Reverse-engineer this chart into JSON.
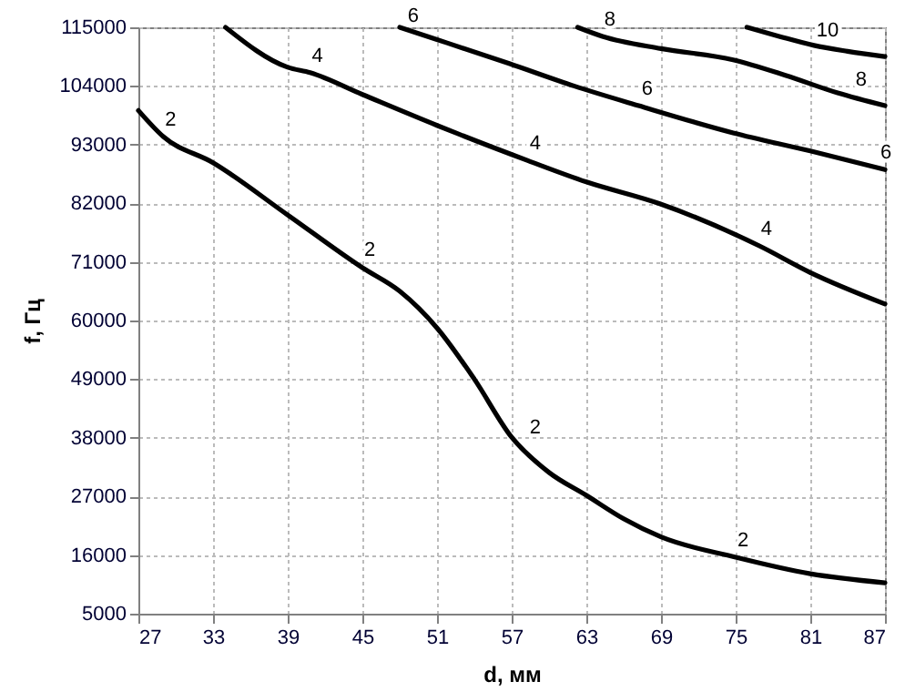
{
  "chart_data": {
    "type": "line",
    "xlabel": "d, мм",
    "ylabel": "f, Гц",
    "xlim": [
      27,
      87
    ],
    "ylim": [
      5000,
      115000
    ],
    "xticks": [
      27,
      33,
      39,
      45,
      51,
      57,
      63,
      69,
      75,
      81,
      87
    ],
    "yticks": [
      5000,
      16000,
      27000,
      38000,
      49000,
      60000,
      71000,
      82000,
      93000,
      104000,
      115000
    ],
    "grid": true,
    "marker": "none",
    "line_style": "solid",
    "series": [
      {
        "color": "#000000",
        "x": [
          27,
          29,
          33,
          39,
          45,
          48,
          51,
          54,
          57,
          60,
          63,
          66,
          69,
          75,
          81,
          87
        ],
        "values": [
          99400,
          94500,
          89600,
          79800,
          69900,
          65500,
          58600,
          49000,
          38100,
          31500,
          27200,
          22800,
          19400,
          15600,
          12500,
          10800
        ]
      },
      {
        "color": "#000000",
        "x": [
          34,
          39,
          40.8,
          45,
          51,
          52.5,
          58.3,
          63,
          68.9,
          76.9,
          81,
          87
        ],
        "values": [
          115000,
          107500,
          106500,
          102400,
          96600,
          95200,
          90000,
          86000,
          81900,
          74000,
          69000,
          63100
        ]
      },
      {
        "color": "#000000",
        "x": [
          48,
          51,
          56.8,
          62,
          67.2,
          74.8,
          81,
          87
        ],
        "values": [
          115000,
          112700,
          108200,
          104000,
          100300,
          95200,
          91800,
          88300
        ]
      },
      {
        "color": "#000000",
        "x": [
          62.3,
          64.3,
          69,
          74.8,
          79,
          83.2,
          87
        ],
        "values": [
          115000,
          113300,
          111000,
          108900,
          106000,
          102700,
          100300
        ]
      },
      {
        "color": "#000000",
        "x": [
          75.9,
          78.5,
          81.3,
          84,
          87
        ],
        "values": [
          115000,
          113300,
          111600,
          110500,
          109500
        ]
      }
    ],
    "annotations": [
      {
        "text": "2",
        "x": 29,
        "y": 94500
      },
      {
        "text": "2",
        "x": 45,
        "y": 70000
      },
      {
        "text": "2",
        "x": 58.3,
        "y": 36800
      },
      {
        "text": "2",
        "x": 75,
        "y": 15600
      },
      {
        "text": "4",
        "x": 40.8,
        "y": 106500
      },
      {
        "text": "4",
        "x": 58.3,
        "y": 90000
      },
      {
        "text": "4",
        "x": 76.9,
        "y": 74000
      },
      {
        "text": "6",
        "x": 48.5,
        "y": 114000
      },
      {
        "text": "6",
        "x": 67.3,
        "y": 100300
      },
      {
        "text": "6",
        "x": 86.5,
        "y": 88300
      },
      {
        "text": "8",
        "x": 64.3,
        "y": 113300
      },
      {
        "text": "8",
        "x": 84.5,
        "y": 102000
      },
      {
        "text": "10",
        "x": 81.8,
        "y": 111300
      }
    ]
  }
}
